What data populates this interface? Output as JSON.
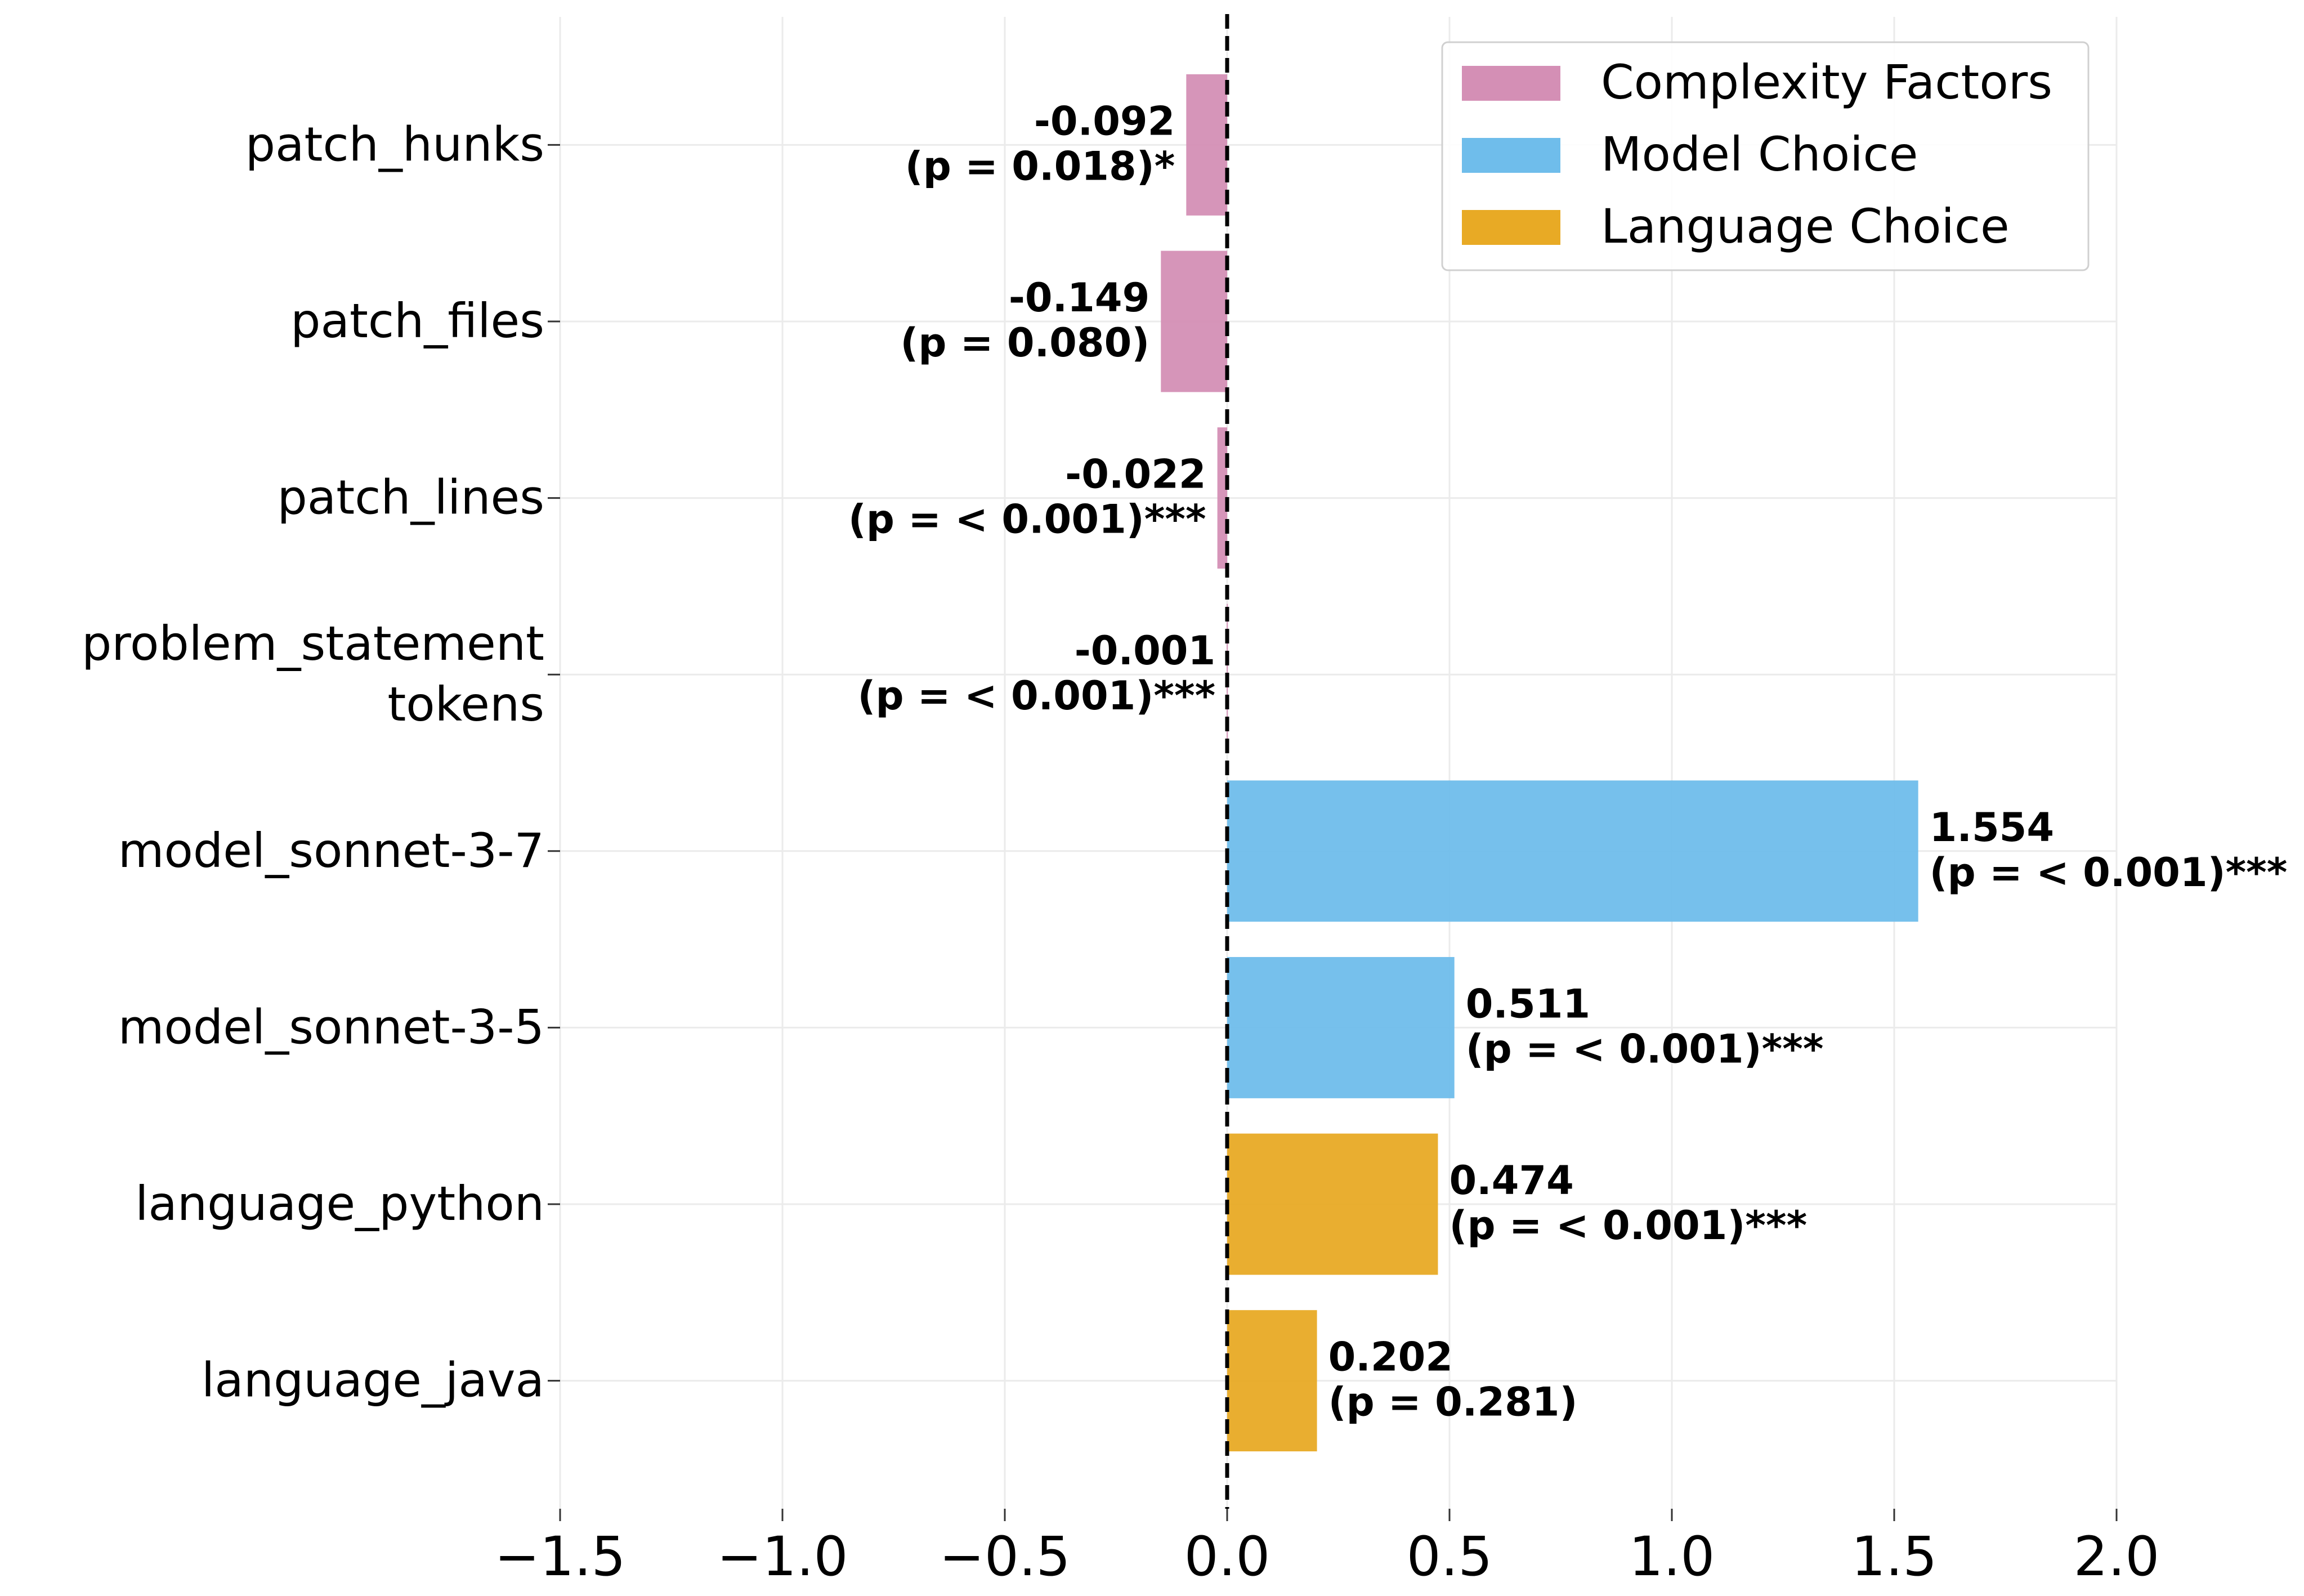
{
  "chart_data": {
    "type": "bar",
    "orientation": "horizontal",
    "title": "",
    "xlabel": "",
    "ylabel": "",
    "xlim": [
      -1.5,
      2.0
    ],
    "xticks": [
      -1.5,
      -1.0,
      -0.5,
      0.0,
      0.5,
      1.0,
      1.5,
      2.0
    ],
    "xtick_labels": [
      "−1.5",
      "−1.0",
      "−0.5",
      "0.0",
      "0.5",
      "1.0",
      "1.5",
      "2.0"
    ],
    "grid": true,
    "reference_line": 0.0,
    "legend_position": "top-right",
    "groups": [
      {
        "name": "Complexity Factors",
        "color": "#d48fb5"
      },
      {
        "name": "Model Choice",
        "color": "#6fbdeb"
      },
      {
        "name": "Language Choice",
        "color": "#e8aa25"
      }
    ],
    "bars": [
      {
        "label_lines": [
          "patch_hunks"
        ],
        "value": -0.092,
        "value_text": "-0.092",
        "p_text": "(p = 0.018)*",
        "group": 0
      },
      {
        "label_lines": [
          "patch_files"
        ],
        "value": -0.149,
        "value_text": "-0.149",
        "p_text": "(p = 0.080)",
        "group": 0
      },
      {
        "label_lines": [
          "patch_lines"
        ],
        "value": -0.022,
        "value_text": "-0.022",
        "p_text": "(p = < 0.001)***",
        "group": 0
      },
      {
        "label_lines": [
          "problem_statement",
          "tokens"
        ],
        "value": -0.001,
        "value_text": "-0.001",
        "p_text": "(p = < 0.001)***",
        "group": 0
      },
      {
        "label_lines": [
          "model_sonnet-3-7"
        ],
        "value": 1.554,
        "value_text": "1.554",
        "p_text": "(p = < 0.001)***",
        "group": 1
      },
      {
        "label_lines": [
          "model_sonnet-3-5"
        ],
        "value": 0.511,
        "value_text": "0.511",
        "p_text": "(p = < 0.001)***",
        "group": 1
      },
      {
        "label_lines": [
          "language_python"
        ],
        "value": 0.474,
        "value_text": "0.474",
        "p_text": "(p = < 0.001)***",
        "group": 2
      },
      {
        "label_lines": [
          "language_java"
        ],
        "value": 0.202,
        "value_text": "0.202",
        "p_text": "(p = 0.281)",
        "group": 2
      }
    ]
  }
}
